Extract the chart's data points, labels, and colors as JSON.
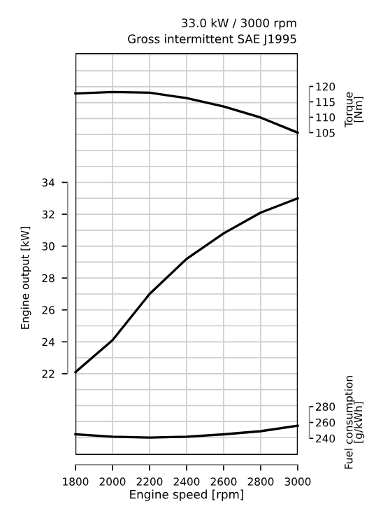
{
  "chart_data": {
    "type": "line",
    "title": "33.0 kW / 3000 rpm",
    "subtitle": "Gross intermittent SAE J1995",
    "xlabel": "Engine speed [rpm]",
    "ylabel": "Engine output [kW]",
    "y2label": "Torque\n[Nm]",
    "y3label": "Fuel consumption\n[g/kWh]",
    "x": [
      1800,
      2000,
      2200,
      2400,
      2600,
      2800,
      3000
    ],
    "xlim": [
      1800,
      3000
    ],
    "xticks": [
      1800,
      2000,
      2200,
      2400,
      2600,
      2800,
      3000
    ],
    "ylim": [
      16.9,
      42.1
    ],
    "yticks": [
      22,
      24,
      26,
      28,
      30,
      32,
      34
    ],
    "y2lim": [
      0.3,
      130.8
    ],
    "y2ticks": [
      105,
      110,
      115,
      120
    ],
    "y3lim": [
      219,
      725
    ],
    "y3ticks": [
      240,
      260,
      280
    ],
    "grid": true,
    "marker": "none",
    "line_style": "solid",
    "series": [
      {
        "color": "#000000",
        "axis": "y2",
        "values": [
          117.7,
          118.2,
          118.0,
          116.2,
          113.5,
          109.9,
          105.0
        ]
      },
      {
        "color": "#000000",
        "axis": "y",
        "values": [
          22.1,
          24.1,
          27.0,
          29.2,
          30.8,
          32.1,
          33.0
        ]
      },
      {
        "color": "#000000",
        "axis": "y3",
        "values": [
          245,
          242,
          241,
          242,
          245,
          249,
          256
        ]
      }
    ]
  }
}
